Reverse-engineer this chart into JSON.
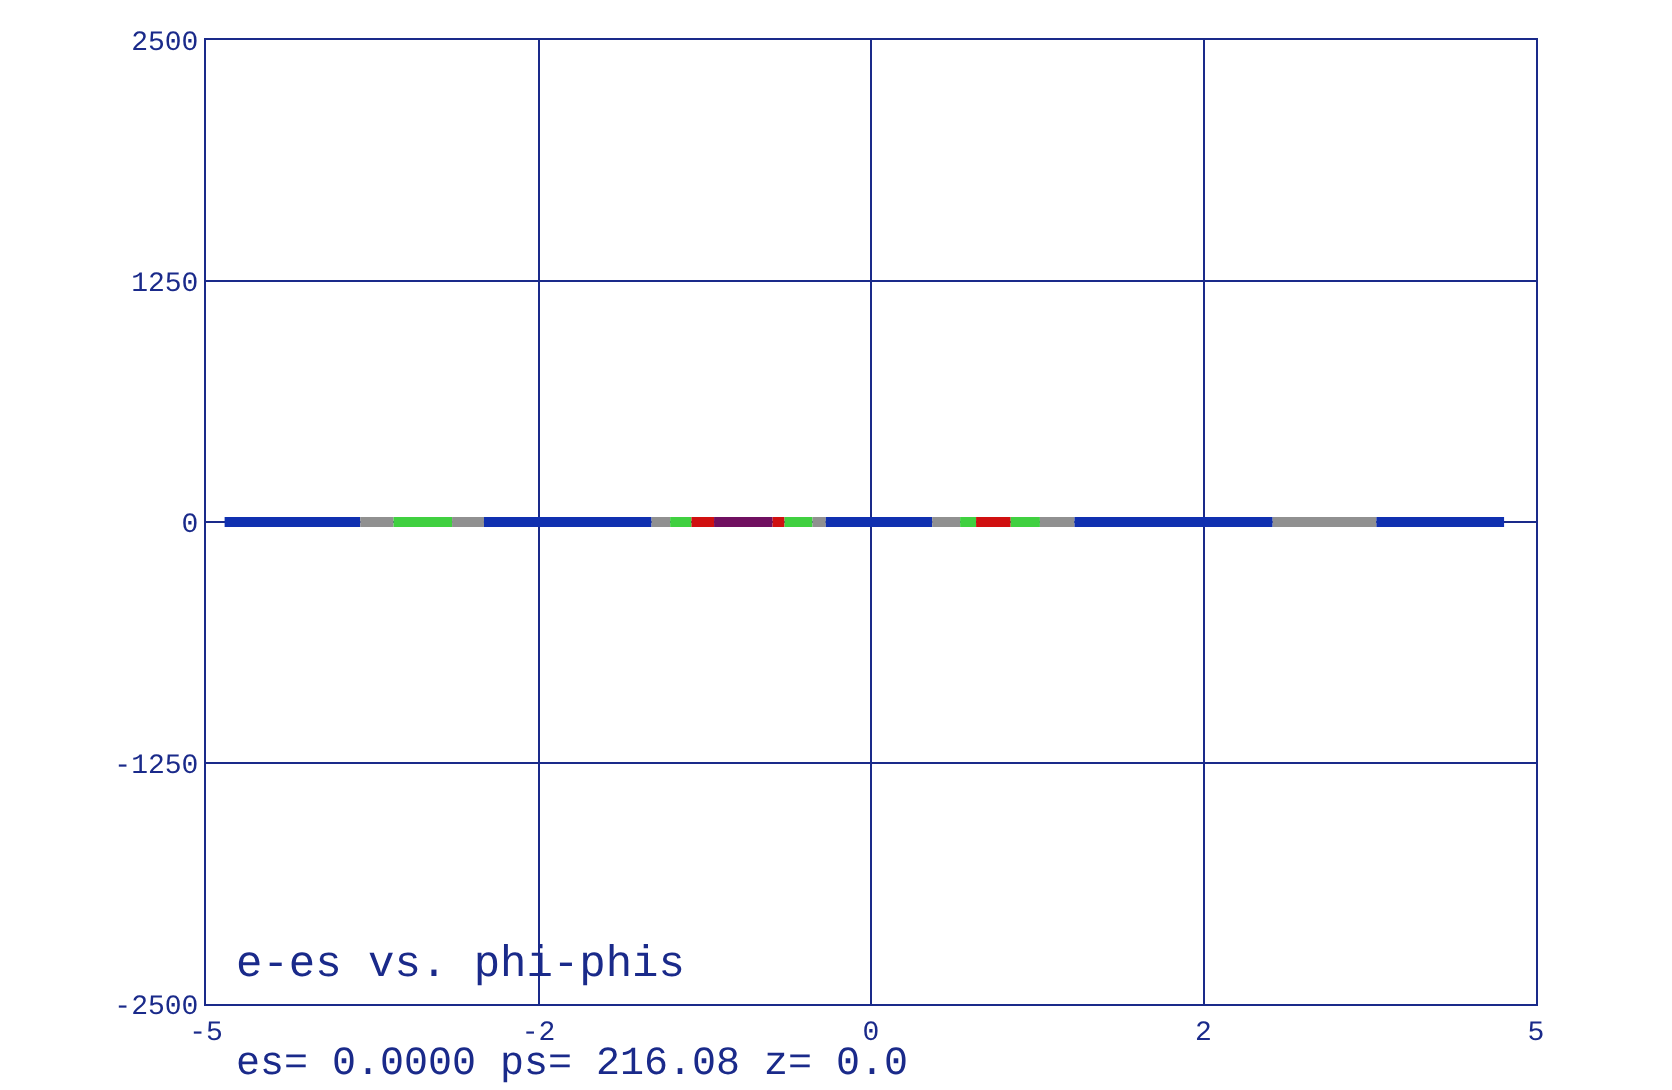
{
  "chart_data": {
    "type": "line",
    "title": "e-es vs. phi-phis",
    "annotations": [
      "es= 0.0000 ps= 216.08 z= 0.0"
    ],
    "xlim": [
      -5,
      5
    ],
    "xticks": [
      -5,
      {
        "value": -2.5,
        "label": "-2"
      },
      0,
      {
        "value": 2.5,
        "label": "2"
      },
      5
    ],
    "ylim": [
      -2500,
      2500
    ],
    "yticks": [
      -2500,
      -1250,
      0,
      1250,
      2500
    ],
    "grid": true,
    "marker": "none",
    "line_style": "solid",
    "series": [
      {
        "color": "#1030b0",
        "x": [
          -4.86,
          -3.84
        ],
        "values": [
          0,
          0
        ]
      },
      {
        "color": "#909090",
        "x": [
          -3.84,
          -3.59
        ],
        "values": [
          0,
          0
        ]
      },
      {
        "color": "#40d040",
        "x": [
          -3.59,
          -3.15
        ],
        "values": [
          0,
          0
        ]
      },
      {
        "color": "#909090",
        "x": [
          -3.15,
          -2.91
        ],
        "values": [
          0,
          0
        ]
      },
      {
        "color": "#1030b0",
        "x": [
          -2.91,
          -1.65
        ],
        "values": [
          0,
          0
        ]
      },
      {
        "color": "#909090",
        "x": [
          -1.65,
          -1.51
        ],
        "values": [
          0,
          0
        ]
      },
      {
        "color": "#40d040",
        "x": [
          -1.51,
          -1.35
        ],
        "values": [
          0,
          0
        ]
      },
      {
        "color": "#d01010",
        "x": [
          -1.35,
          -1.18
        ],
        "values": [
          0,
          0
        ]
      },
      {
        "color": "#701060",
        "x": [
          -1.18,
          -0.74
        ],
        "values": [
          0,
          0
        ]
      },
      {
        "color": "#d01010",
        "x": [
          -0.74,
          -0.65
        ],
        "values": [
          0,
          0
        ]
      },
      {
        "color": "#40d040",
        "x": [
          -0.65,
          -0.44
        ],
        "values": [
          0,
          0
        ]
      },
      {
        "color": "#909090",
        "x": [
          -0.44,
          -0.34
        ],
        "values": [
          0,
          0
        ]
      },
      {
        "color": "#1030b0",
        "x": [
          -0.34,
          0.46
        ],
        "values": [
          0,
          0
        ]
      },
      {
        "color": "#909090",
        "x": [
          0.46,
          0.67
        ],
        "values": [
          0,
          0
        ]
      },
      {
        "color": "#40d040",
        "x": [
          0.67,
          0.79
        ],
        "values": [
          0,
          0
        ]
      },
      {
        "color": "#d01010",
        "x": [
          0.79,
          1.05
        ],
        "values": [
          0,
          0
        ]
      },
      {
        "color": "#40d040",
        "x": [
          1.05,
          1.27
        ],
        "values": [
          0,
          0
        ]
      },
      {
        "color": "#909090",
        "x": [
          1.27,
          1.53
        ],
        "values": [
          0,
          0
        ]
      },
      {
        "color": "#1030b0",
        "x": [
          1.53,
          3.02
        ],
        "values": [
          0,
          0
        ]
      },
      {
        "color": "#909090",
        "x": [
          3.02,
          3.8
        ],
        "values": [
          0,
          0
        ]
      },
      {
        "color": "#1030b0",
        "x": [
          3.8,
          4.76
        ],
        "values": [
          0,
          0
        ]
      }
    ]
  }
}
